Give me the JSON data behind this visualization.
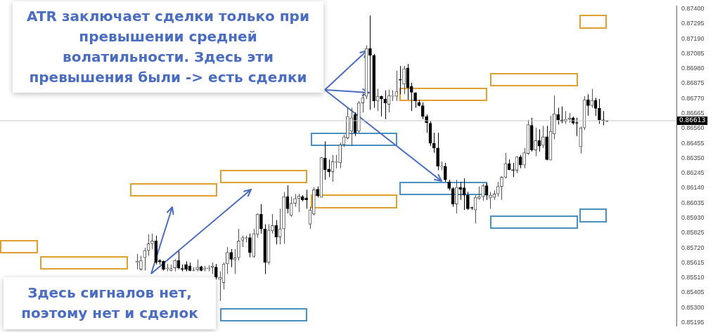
{
  "chart_data": {
    "type": "candlestick",
    "categories": [
      null,
      null,
      null,
      null,
      null,
      null,
      null,
      null,
      null,
      null,
      null,
      null,
      null,
      null,
      null,
      null,
      null,
      null,
      null,
      null,
      null,
      null,
      null,
      null,
      null,
      null,
      null,
      null,
      null,
      null,
      null,
      null,
      null,
      null,
      null,
      null,
      null,
      null,
      null,
      null,
      null,
      null,
      null,
      null,
      null,
      null,
      null,
      null,
      null,
      null,
      null,
      null,
      null,
      null,
      null,
      null,
      null,
      null,
      null,
      null,
      null,
      null,
      null,
      null,
      null,
      null,
      null,
      null,
      null,
      null,
      null,
      null,
      null,
      null,
      null,
      null,
      null,
      null,
      null,
      null,
      null,
      null,
      null,
      null,
      null,
      null,
      null,
      null,
      null,
      null,
      null,
      null,
      null,
      null,
      null,
      null,
      null,
      null,
      null,
      null,
      null,
      null,
      null,
      null,
      null,
      null,
      null,
      null,
      null,
      null,
      null,
      null,
      null,
      null,
      null,
      null,
      null,
      null,
      null,
      null,
      null,
      null,
      null,
      null,
      null,
      null,
      null,
      null,
      null,
      null,
      null,
      null,
      null,
      null,
      null,
      null,
      null,
      null,
      null,
      null,
      null,
      null,
      null,
      null,
      null,
      null,
      null,
      null,
      null,
      null,
      null,
      null,
      null,
      null,
      null,
      null,
      null,
      null,
      null,
      null,
      null,
      null,
      null,
      null,
      null,
      null,
      null,
      null,
      null,
      null,
      null,
      null,
      null,
      null,
      null,
      null,
      null,
      null,
      null,
      null
    ],
    "ohlc": [
      null,
      null,
      null,
      null,
      null,
      null,
      null,
      null,
      null,
      null,
      null,
      null,
      null,
      null,
      null,
      null,
      null,
      null,
      null,
      null,
      null,
      null,
      null,
      null,
      null,
      null,
      null,
      null,
      null,
      null,
      null,
      null,
      null,
      null,
      null,
      null,
      [
        0.85617,
        0.85678,
        0.85569,
        0.85626
      ],
      [
        0.85569,
        0.85664,
        0.8556,
        0.85631
      ],
      [
        0.8565,
        0.85721,
        0.8556,
        0.85701
      ],
      [
        0.85701,
        0.85815,
        0.85664,
        0.85749
      ],
      [
        0.85749,
        0.8582,
        0.85711,
        0.85768
      ],
      [
        0.85768,
        0.85806,
        0.85603,
        0.85617
      ],
      [
        0.85631,
        0.8564,
        0.85603,
        0.85621
      ],
      [
        0.85626,
        0.85631,
        0.8556,
        0.85569
      ],
      [
        0.85574,
        0.85607,
        0.85555,
        0.85579
      ],
      [
        0.8556,
        0.85603,
        0.85555,
        0.85574
      ],
      [
        0.85579,
        0.8564,
        0.85555,
        0.85631
      ],
      [
        0.85631,
        0.85697,
        0.85569,
        0.85579
      ],
      [
        0.85574,
        0.85603,
        0.85555,
        0.85569
      ],
      [
        0.85603,
        0.85626,
        0.85555,
        0.85569
      ],
      [
        0.85593,
        0.85617,
        0.85555,
        0.8556
      ],
      [
        0.8556,
        0.85584,
        0.85555,
        0.85565
      ],
      [
        0.85569,
        0.85636,
        0.85555,
        0.85584
      ],
      [
        0.85588,
        0.85593,
        0.85555,
        0.8556
      ],
      [
        0.85569,
        0.85593,
        0.85555,
        0.85574
      ],
      [
        0.85574,
        0.85598,
        0.85555,
        0.85579
      ],
      [
        0.85584,
        0.85617,
        0.85536,
        0.85593
      ],
      [
        0.85584,
        0.85607,
        0.85498,
        0.85513
      ],
      [
        0.85498,
        0.85555,
        0.85347,
        0.85513
      ],
      [
        0.85475,
        0.85617,
        0.85427,
        0.85607
      ],
      [
        0.85607,
        0.85725,
        0.85536,
        0.85688
      ],
      [
        0.85688,
        0.85711,
        0.85584,
        0.8564
      ],
      [
        0.85636,
        0.85711,
        0.85536,
        0.8565
      ],
      [
        0.8565,
        0.85853,
        0.85631,
        0.85768
      ],
      [
        0.85773,
        0.85806,
        0.85725,
        0.85792
      ],
      [
        0.85787,
        0.85806,
        0.85759,
        0.85792
      ],
      [
        0.85792,
        0.8582,
        0.85654,
        0.85688
      ],
      [
        0.85659,
        0.85853,
        0.8565,
        0.8582
      ],
      [
        0.85815,
        0.85962,
        0.85792,
        0.85957
      ],
      [
        0.85957,
        0.86028,
        0.8582,
        0.85853
      ],
      [
        0.85853,
        0.85886,
        0.85536,
        0.85617
      ],
      [
        0.85617,
        0.85886,
        0.85603,
        0.85844
      ],
      [
        0.85839,
        0.85957,
        0.8582,
        0.85877
      ],
      [
        0.85877,
        0.85915,
        0.85744,
        0.85796
      ],
      [
        0.85796,
        0.85995,
        0.85744,
        0.85853
      ],
      [
        0.85853,
        0.86113,
        0.85749,
        0.8608
      ],
      [
        0.8608,
        0.8616,
        0.85962,
        0.85995
      ],
      [
        0.85948,
        0.8608,
        0.85938,
        0.86033
      ],
      [
        0.86033,
        0.86099,
        0.86009,
        0.86066
      ],
      [
        0.86066,
        0.86099,
        0.85971,
        0.86085
      ],
      [
        0.8608,
        0.8609,
        0.86047,
        0.86057
      ],
      [
        0.86071,
        0.86128,
        0.85995,
        0.86057
      ],
      [
        0.85886,
        0.86009,
        0.85853,
        0.85986
      ],
      [
        0.85957,
        0.86146,
        0.85948,
        0.86128
      ],
      [
        0.86132,
        0.86151,
        0.86075,
        0.86085
      ],
      [
        0.86075,
        0.86359,
        0.86075,
        0.86354
      ],
      [
        0.8635,
        0.86468,
        0.86198,
        0.86269
      ],
      [
        0.86274,
        0.8634,
        0.86217,
        0.86255
      ],
      [
        0.86255,
        0.86373,
        0.86184,
        0.86326
      ],
      [
        0.86321,
        0.86373,
        0.86279,
        0.86326
      ],
      [
        0.86317,
        0.86459,
        0.86279,
        0.86444
      ],
      [
        0.86444,
        0.86515,
        0.8643,
        0.86501
      ],
      [
        0.86492,
        0.86704,
        0.86482,
        0.86643
      ],
      [
        0.86539,
        0.86704,
        0.86435,
        0.86634
      ],
      [
        0.86657,
        0.86671,
        0.86506,
        0.86529
      ],
      [
        0.86539,
        0.86752,
        0.86529,
        0.86738
      ],
      [
        0.86738,
        0.86813,
        0.86671,
        0.86775
      ],
      [
        0.86785,
        0.87144,
        0.86766,
        0.87121
      ],
      [
        0.87121,
        0.87353,
        0.8669,
        0.87073
      ],
      [
        0.87073,
        0.87083,
        0.86704,
        0.86752
      ],
      [
        0.86752,
        0.86837,
        0.86681,
        0.86785
      ],
      [
        0.86785,
        0.8679,
        0.86643,
        0.86766
      ],
      [
        0.86766,
        0.86827,
        0.86624,
        0.86738
      ],
      [
        0.86728,
        0.86832,
        0.86671,
        0.8679
      ],
      [
        0.86785,
        0.86827,
        0.86752,
        0.8679
      ],
      [
        0.86785,
        0.86965,
        0.86752,
        0.86818
      ],
      [
        0.86903,
        0.86998,
        0.86799,
        0.86898
      ],
      [
        0.8687,
        0.86998,
        0.86799,
        0.86979
      ],
      [
        0.86984,
        0.87012,
        0.86761,
        0.86846
      ],
      [
        0.86856,
        0.8688,
        0.86681,
        0.86813
      ],
      [
        0.86809,
        0.86813,
        0.86704,
        0.86752
      ],
      [
        0.86742,
        0.86761,
        0.86714,
        0.86719
      ],
      [
        0.86719,
        0.86742,
        0.86624,
        0.86643
      ],
      [
        0.86643,
        0.86657,
        0.86529,
        0.866
      ],
      [
        0.86596,
        0.8661,
        0.86435,
        0.86454
      ],
      [
        0.86454,
        0.86529,
        0.86388,
        0.86421
      ],
      [
        0.86421,
        0.86529,
        0.86265,
        0.86293
      ],
      [
        0.86288,
        0.86326,
        0.86265,
        0.86293
      ],
      [
        0.86293,
        0.86317,
        0.86184,
        0.86198
      ],
      [
        0.86184,
        0.86198,
        0.86123,
        0.86137
      ],
      [
        0.86137,
        0.86146,
        0.86009,
        0.86028
      ],
      [
        0.86028,
        0.86198,
        0.85962,
        0.86146
      ],
      [
        0.86146,
        0.86184,
        0.86057,
        0.86132
      ],
      [
        0.86142,
        0.86208,
        0.85986,
        0.8609
      ],
      [
        0.8609,
        0.86113,
        0.85986,
        0.85995
      ],
      [
        0.86004,
        0.86009,
        0.85986,
        0.86
      ],
      [
        0.85986,
        0.8609,
        0.85891,
        0.86075
      ],
      [
        0.86066,
        0.86151,
        0.86057,
        0.8608
      ],
      [
        0.8608,
        0.8617,
        0.86052,
        0.86156
      ],
      [
        0.86156,
        0.86175,
        0.86057,
        0.8609
      ],
      [
        0.86071,
        0.86113,
        0.85995,
        0.8609
      ],
      [
        0.86075,
        0.86123,
        0.86057,
        0.86099
      ],
      [
        0.86099,
        0.86184,
        0.8608,
        0.86151
      ],
      [
        0.86151,
        0.86222,
        0.86057,
        0.86217
      ],
      [
        0.86217,
        0.86388,
        0.86208,
        0.86312
      ],
      [
        0.86312,
        0.8634,
        0.86265,
        0.86269
      ],
      [
        0.86269,
        0.86317,
        0.86217,
        0.86265
      ],
      [
        0.86265,
        0.86364,
        0.86245,
        0.86359
      ],
      [
        0.86359,
        0.86373,
        0.86279,
        0.86302
      ],
      [
        0.86302,
        0.86421,
        0.86279,
        0.86388
      ],
      [
        0.86383,
        0.86619,
        0.86373,
        0.86586
      ],
      [
        0.86581,
        0.86634,
        0.86397,
        0.86407
      ],
      [
        0.86407,
        0.86563,
        0.86364,
        0.86473
      ],
      [
        0.86473,
        0.86553,
        0.86397,
        0.86435
      ],
      [
        0.8644,
        0.86577,
        0.86421,
        0.86501
      ],
      [
        0.86501,
        0.86577,
        0.86336,
        0.8634
      ],
      [
        0.86336,
        0.86648,
        0.86336,
        0.86539
      ],
      [
        0.8652,
        0.8679,
        0.86482,
        0.86662
      ],
      [
        0.86657,
        0.86704,
        0.86586,
        0.86619
      ],
      [
        0.86619,
        0.86714,
        0.86596,
        0.8661
      ],
      [
        0.8661,
        0.86681,
        0.86591,
        0.86624
      ],
      [
        0.86624,
        0.86667,
        0.866,
        0.86634
      ],
      [
        0.86634,
        0.86643,
        0.86586,
        0.86596
      ],
      [
        0.866,
        0.86634,
        0.86506,
        0.86596
      ],
      [
        0.8643,
        0.86572,
        0.86383,
        0.86563
      ],
      [
        0.86563,
        0.86785,
        0.86548,
        0.86761
      ],
      [
        0.86761,
        0.86799,
        0.86648,
        0.86719
      ],
      [
        0.86719,
        0.86837,
        0.86704,
        0.86757
      ],
      [
        0.86757,
        0.86775,
        0.86648,
        0.867
      ],
      [
        0.867,
        0.86766,
        0.86591,
        0.86619
      ],
      [
        0.86619,
        0.86681,
        0.86581,
        0.86615
      ],
      [
        0.86613,
        0.86615,
        0.86605,
        0.8661
      ],
      null,
      null,
      null,
      null,
      null,
      null,
      null,
      null,
      null,
      null,
      null,
      null,
      null,
      null,
      null,
      null,
      null,
      null
    ],
    "colors": [
      null,
      null,
      null,
      null,
      null,
      null,
      null,
      null,
      null,
      null,
      null,
      null,
      null,
      null,
      null,
      null,
      null,
      null,
      null,
      null,
      null,
      null,
      null,
      null,
      null,
      null,
      null,
      null,
      null,
      null,
      null,
      null,
      null,
      null,
      null,
      null,
      "#505050",
      "#505050",
      "#505050",
      "#505050",
      "#505050",
      "#000000",
      "#000000",
      "#000000",
      "#505050",
      "#505050",
      "#505050",
      "#000000",
      "#000000",
      "#000000",
      "#000000",
      "#505050",
      "#505050",
      "#000000",
      "#505050",
      "#505050",
      "#505050",
      "#000000",
      "#505050",
      "#505050",
      "#505050",
      "#000000",
      "#505050",
      "#505050",
      "#505050",
      "#505050",
      "#000000",
      "#505050",
      "#505050",
      "#000000",
      "#000000",
      "#505050",
      "#505050",
      "#000000",
      "#505050",
      "#505050",
      "#000000",
      "#505050",
      "#505050",
      "#505050",
      "#000000",
      "#000000",
      "#505050",
      "#505050",
      "#000000",
      "#505050",
      "#000000",
      "#000000",
      "#505050",
      "#505050",
      "#505050",
      "#505050",
      "#505050",
      "#505050",
      "#000000",
      "#505050",
      "#505050",
      "#505050",
      "#000000",
      "#000000",
      "#505050",
      "#000000",
      "#000000",
      "#505050",
      "#505050",
      "#505050",
      "#000000",
      "#505050",
      "#000000",
      "#000000",
      "#000000",
      "#000000",
      "#000000",
      "#000000",
      "#000000",
      "#000000",
      "#000000",
      "#505050",
      "#000000",
      "#000000",
      "#000000",
      "#505050",
      "#000000",
      "#000000",
      "#000000",
      "#000000",
      "#505050",
      "#505050",
      "#505050",
      "#000000",
      "#505050",
      "#505050",
      "#505050",
      "#505050",
      "#505050",
      "#000000",
      "#000000",
      "#505050",
      "#000000",
      "#505050",
      "#505050",
      "#000000",
      "#505050",
      "#000000",
      "#505050",
      "#000000",
      "#505050",
      "#505050",
      "#000000",
      "#000000",
      "#505050",
      "#505050",
      "#000000",
      "#000000",
      "#505050",
      "#505050",
      "#000000",
      "#505050",
      "#000000",
      "#000000",
      "#000000",
      "#000000",
      null,
      null,
      null,
      null,
      null,
      null,
      null,
      null,
      null,
      null,
      null,
      null,
      null,
      null,
      null,
      null,
      null,
      null
    ],
    "ylim": [
      0.8517,
      0.8742
    ],
    "yticks": [
      {
        "value": 0.874,
        "label": "0.87400"
      },
      {
        "value": 0.87295,
        "label": "0.87295"
      },
      {
        "value": 0.8719,
        "label": "0.87190"
      },
      {
        "value": 0.87085,
        "label": "0.87085"
      },
      {
        "value": 0.8698,
        "label": "0.86980"
      },
      {
        "value": 0.86875,
        "label": "0.86875"
      },
      {
        "value": 0.8677,
        "label": "0.86770"
      },
      {
        "value": 0.86665,
        "label": "0.86665"
      },
      {
        "value": 0.8656,
        "label": "0.86560"
      },
      {
        "value": 0.86455,
        "label": "0.86455"
      },
      {
        "value": 0.8635,
        "label": "0.86350"
      },
      {
        "value": 0.86245,
        "label": "0.86245"
      },
      {
        "value": 0.8614,
        "label": "0.86140"
      },
      {
        "value": 0.86035,
        "label": "0.86035"
      },
      {
        "value": 0.8593,
        "label": "0.85930"
      },
      {
        "value": 0.85825,
        "label": "0.85825"
      },
      {
        "value": 0.8572,
        "label": "0.85720"
      },
      {
        "value": 0.85615,
        "label": "0.85615"
      },
      {
        "value": 0.8551,
        "label": "0.85510"
      },
      {
        "value": 0.85405,
        "label": "0.85405"
      },
      {
        "value": 0.853,
        "label": "0.85300"
      },
      {
        "value": 0.85195,
        "label": "0.85195"
      }
    ],
    "tick_labels": "y",
    "ref_lines": [
      {
        "axis": "y",
        "value": 0.86613,
        "label": "0.86613",
        "color": "#c8c8c8"
      }
    ],
    "annotations": [
      "ATR заключает сделки только при превышении средней волатильности. Здесь эти превышения были -> есть сделки",
      "Здесь сигналов нет, поэтому нет и сделок"
    ]
  }
}
